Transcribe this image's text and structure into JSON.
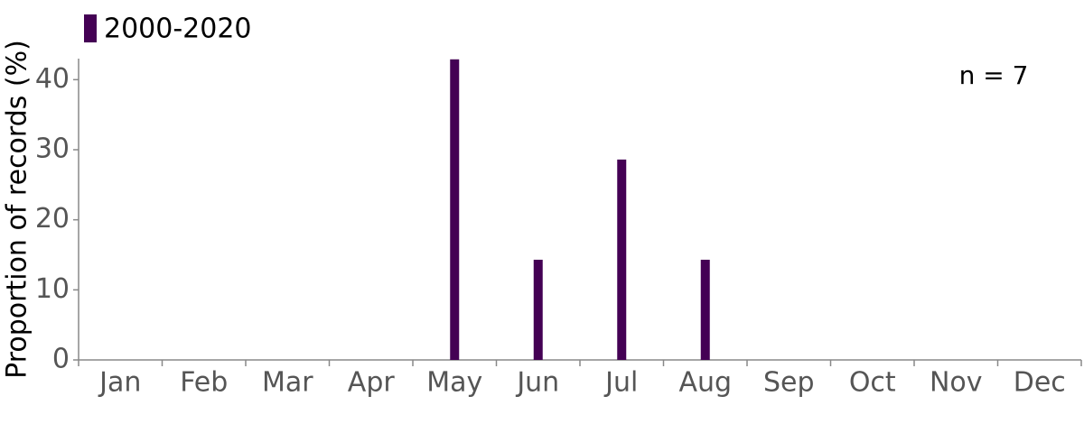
{
  "chart_data": {
    "type": "bar",
    "legend": "2000-2020",
    "annotation": "n = 7",
    "ylabel": "Proportion of records (%)",
    "categories": [
      "Jan",
      "Feb",
      "Mar",
      "Apr",
      "May",
      "Jun",
      "Jul",
      "Aug",
      "Sep",
      "Oct",
      "Nov",
      "Dec"
    ],
    "values": [
      0,
      0,
      0,
      0,
      42.9,
      14.3,
      28.6,
      14.3,
      0,
      0,
      0,
      0
    ],
    "color": "#440154",
    "ylim": [
      0,
      43
    ],
    "yticks": [
      0,
      10,
      20,
      30,
      40
    ]
  }
}
